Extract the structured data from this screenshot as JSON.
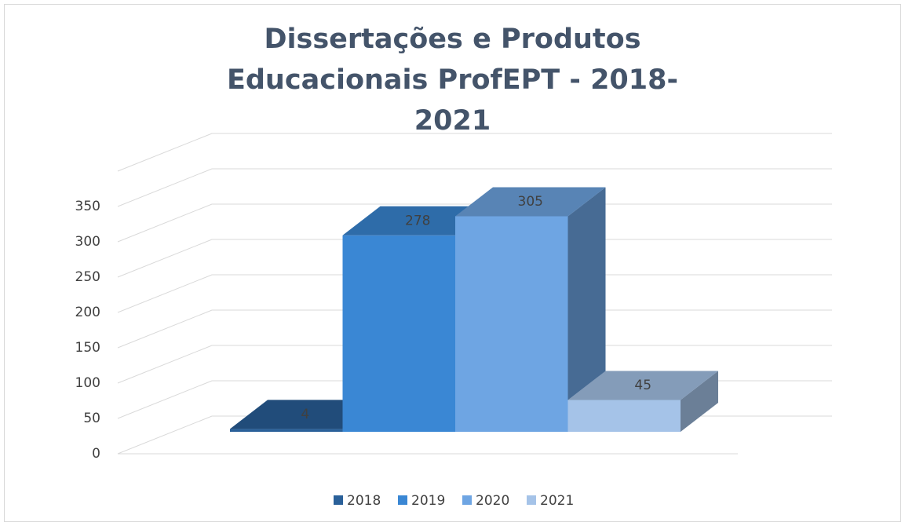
{
  "chart_data": {
    "type": "bar3d",
    "title": "Dissertações e Produtos Educacionais ProfEPT - 2018-2021",
    "series": [
      {
        "name": "2018",
        "color": "#2a6099",
        "values": [
          4
        ]
      },
      {
        "name": "2019",
        "color": "#3a87d4",
        "values": [
          278
        ]
      },
      {
        "name": "2020",
        "color": "#6ea5e3",
        "values": [
          305
        ]
      },
      {
        "name": "2021",
        "color": "#a5c3e8",
        "values": [
          45
        ]
      }
    ],
    "ylim": [
      0,
      400
    ],
    "yticks": [
      0,
      50,
      100,
      150,
      200,
      250,
      300,
      350
    ],
    "grid": true,
    "legend": "bottom"
  }
}
